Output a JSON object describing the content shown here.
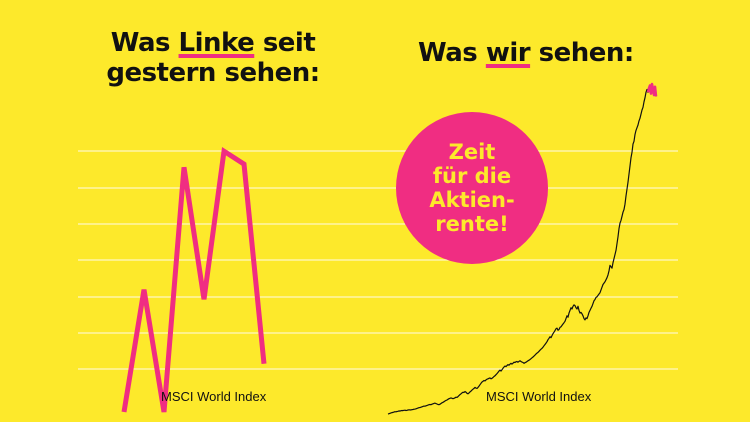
{
  "left_headline": {
    "line1_prefix": "Was ",
    "line1_highlight": "Linke",
    "line1_suffix": " seit",
    "line2": "gestern sehen:"
  },
  "right_headline": {
    "prefix": "Was ",
    "highlight": "wir",
    "suffix": " sehen:"
  },
  "badge_lines": [
    "Zeit",
    "für die",
    "Aktien-",
    "rente!"
  ],
  "colors": {
    "background": "#fde92b",
    "accent": "#f02d82",
    "text": "#111111",
    "gridline": "#ffffff"
  },
  "chart_data": [
    {
      "type": "line",
      "xlabel": "MSCI World Index",
      "ylabel": "",
      "series": [
        {
          "values": [
            0,
            38,
            0,
            76,
            35,
            81,
            77,
            15
          ]
        }
      ],
      "ylim": [
        0,
        100
      ],
      "grid": true,
      "color": "#f02d82"
    },
    {
      "type": "line",
      "xlabel": "MSCI World Index",
      "ylabel": "",
      "series": [
        {
          "values": [
            0,
            2,
            5,
            8,
            10,
            12,
            15,
            17,
            16,
            18,
            20,
            23,
            21,
            24,
            26,
            25,
            27,
            28,
            26,
            27,
            29,
            31,
            30,
            29,
            32,
            33,
            35,
            36,
            38,
            41,
            44,
            46,
            48,
            50,
            53,
            56,
            58,
            57,
            60,
            62,
            65,
            68,
            70,
            68,
            72,
            75,
            78,
            80,
            76,
            73,
            70,
            68,
            72,
            77,
            82,
            86,
            90,
            95,
            100,
            103,
            108,
            112,
            115,
            118,
            115,
            112,
            115,
            119,
            123,
            122,
            128,
            135,
            142,
            148,
            155,
            160,
            158,
            165,
            160,
            152,
            148,
            155,
            162,
            168,
            175,
            182,
            188,
            195,
            190,
            188,
            195,
            205,
            215,
            225,
            235,
            240,
            246,
            243,
            250,
            255,
            258,
            262,
            265,
            258,
            262,
            268,
            275,
            280,
            288,
            296,
            305,
            315,
            322,
            315,
            325,
            335,
            345,
            352,
            348,
            356,
            362,
            358,
            366,
            372,
            366,
            373,
            380,
            378,
            383,
            385,
            380,
            386,
            390,
            385,
            381,
            378,
            372,
            376,
            380,
            385,
            390,
            395,
            400,
            406,
            412,
            418,
            425,
            432,
            440,
            447,
            452,
            460,
            468,
            475,
            482,
            490,
            500,
            510,
            520,
            530,
            545,
            555,
            567,
            560,
            575,
            590,
            600,
            612,
            625,
            630,
            615,
            620,
            635,
            640,
            650,
            660,
            670,
            680,
            700,
            720,
            710,
            740,
            760,
            780,
            770,
            790,
            800,
            795,
            780,
            770,
            790,
            760,
            740,
            745,
            735,
            720,
            700,
            690,
            705,
            700,
            720,
            745,
            760,
            775,
            790,
            810,
            830,
            840,
            855,
            860,
            870,
            880,
            890,
            910,
            930,
            950,
            960,
            970,
            985,
            1000,
            1020,
            1050,
            1090,
            1080,
            1070,
            1110,
            1140,
            1170,
            1200,
            1250,
            1300,
            1360,
            1400,
            1420,
            1450,
            1480,
            1500,
            1540,
            1600,
            1650,
            1700,
            1760,
            1820,
            1880,
            1920,
            1980,
            2000,
            2050,
            2080,
            2100,
            2120,
            2150,
            2170,
            2200,
            2230,
            2250,
            2290,
            2320,
            2360,
            2380,
            2360,
            2390,
            2410,
            2350,
            2420,
            2380,
            2340,
            2400,
            2330
          ]
        }
      ],
      "ylim": [
        0,
        2450
      ],
      "color": "#111111",
      "highlight_color": "#f02d82"
    }
  ]
}
